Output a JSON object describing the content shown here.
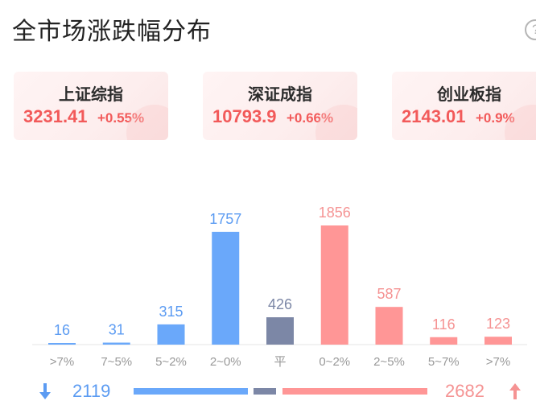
{
  "title": "全市场涨跌幅分布",
  "indices": [
    {
      "name": "上证综指",
      "price": "3231.41",
      "change": "+0.55%"
    },
    {
      "name": "深证成指",
      "price": "10793.9",
      "change": "+0.66%"
    },
    {
      "name": "创业板指",
      "price": "2143.01",
      "change": "+0.9%"
    }
  ],
  "colors": {
    "down": "#6aa8fa",
    "flat": "#7c87a6",
    "up": "#ff9696",
    "up_text": "#f25a5a"
  },
  "chart_data": {
    "type": "bar",
    "categories": [
      ">7%",
      "7~5%",
      "5~2%",
      "2~0%",
      "平",
      "0~2%",
      "2~5%",
      "5~7%",
      ">7%"
    ],
    "values": [
      16,
      31,
      315,
      1757,
      426,
      1856,
      587,
      116,
      123
    ],
    "groups": [
      "down",
      "down",
      "down",
      "down",
      "flat",
      "up",
      "up",
      "up",
      "up"
    ],
    "title": "",
    "xlabel": "",
    "ylabel": "",
    "ylim": [
      0,
      1856
    ]
  },
  "summary": {
    "down_total": "2119",
    "up_total": "2682"
  },
  "icons": {
    "down": "arrow-down-icon",
    "up": "arrow-up-icon",
    "help": "help-icon"
  }
}
